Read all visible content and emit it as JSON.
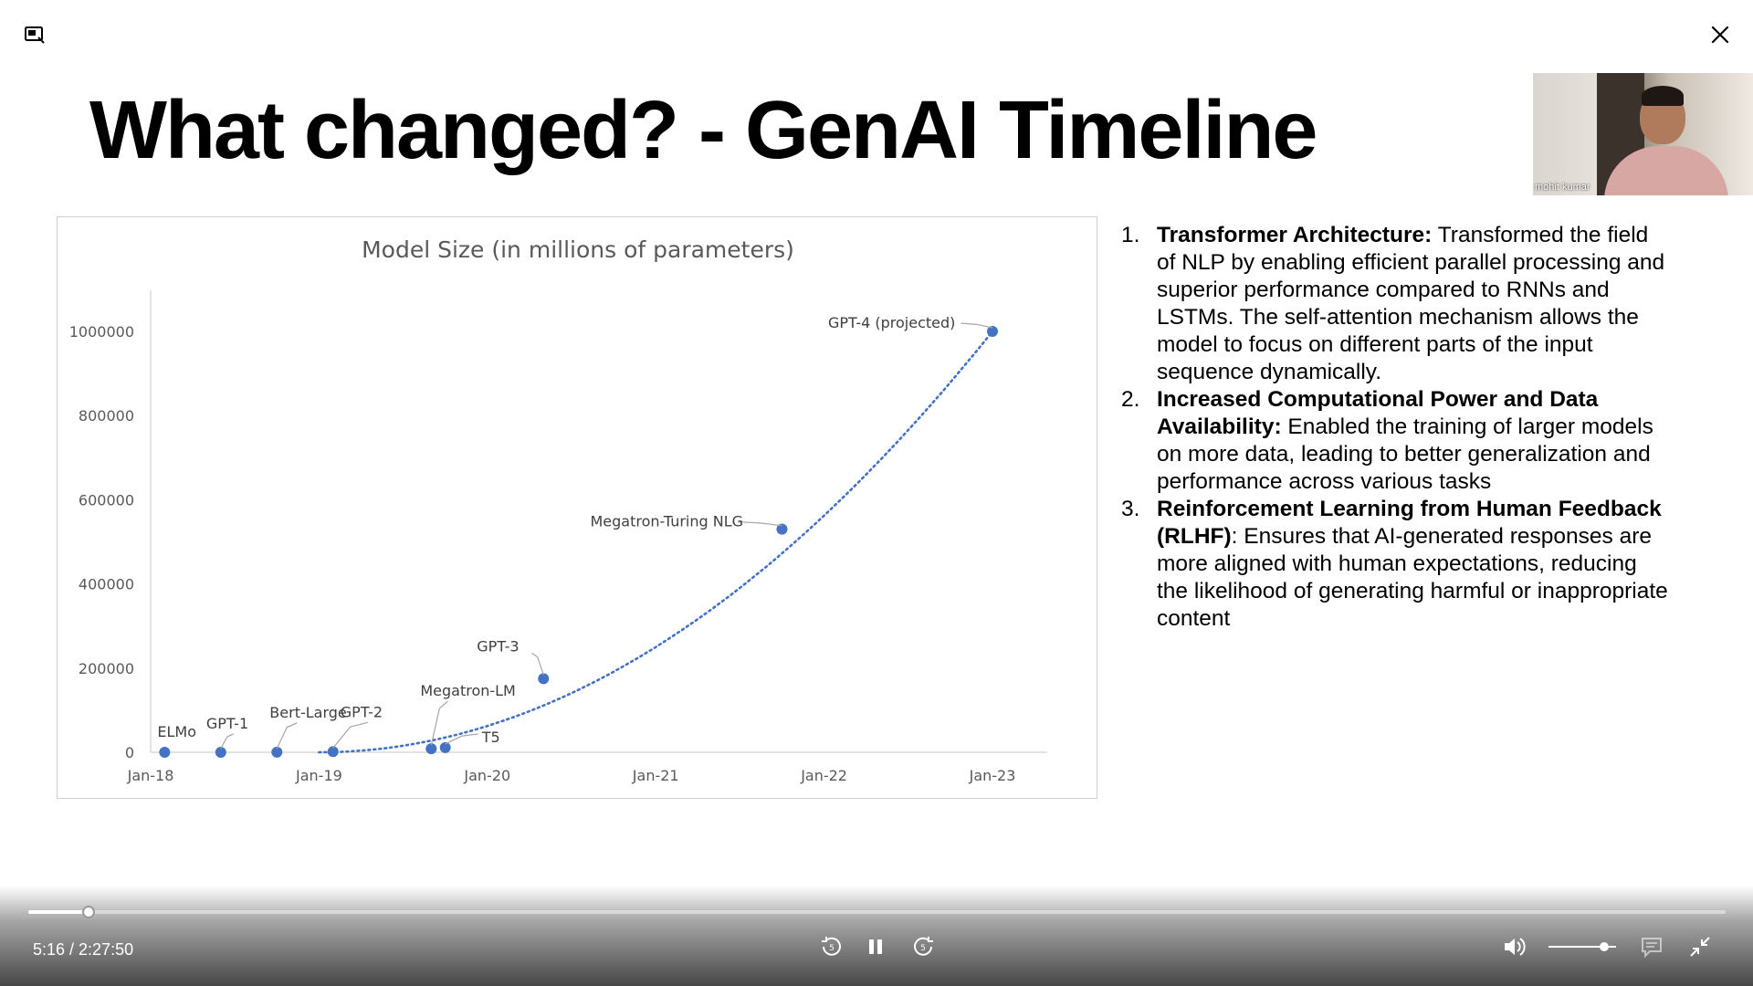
{
  "slide": {
    "title": "What changed? - GenAI Timeline"
  },
  "webcam": {
    "name": "mohit kumar"
  },
  "notes": [
    {
      "number": "1.",
      "bold": "Transformer Architecture:",
      "text": " Transformed the field of NLP by enabling efficient parallel processing and superior performance compared to RNNs and LSTMs. The self-attention mechanism allows the model to focus on different parts of the input sequence dynamically."
    },
    {
      "number": "2.",
      "bold": "Increased Computational Power and Data Availability:",
      "text": " Enabled the training of larger models on more data, leading to better generalization and performance across various tasks"
    },
    {
      "number": "3.",
      "bold": "Reinforcement Learning from Human Feedback (RLHF)",
      "text": ": Ensures that AI-generated responses are more aligned with human expectations, reducing the likelihood of generating harmful or inappropriate content"
    }
  ],
  "chart_data": {
    "type": "scatter",
    "title": "Model Size (in millions of parameters)",
    "xlabel": "",
    "ylabel": "",
    "x_ticks": [
      "Jan-18",
      "Jan-19",
      "Jan-20",
      "Jan-21",
      "Jan-22",
      "Jan-23"
    ],
    "y_ticks": [
      0,
      200000,
      400000,
      600000,
      800000,
      1000000
    ],
    "ylim": [
      0,
      1000000
    ],
    "xlim_years": [
      2018.0,
      2023.0
    ],
    "trendline": "dotted",
    "color": "#4472c4",
    "grid": false,
    "series": [
      {
        "points": [
          {
            "label": "ELMo",
            "date": "2018-02",
            "value": 94
          },
          {
            "label": "GPT-1",
            "date": "2018-06",
            "value": 117
          },
          {
            "label": "Bert-Large",
            "date": "2018-10",
            "value": 340
          },
          {
            "label": "GPT-2",
            "date": "2019-02",
            "value": 1500
          },
          {
            "label": "Megatron-LM",
            "date": "2019-09",
            "value": 8300
          },
          {
            "label": "T5",
            "date": "2019-10",
            "value": 11000
          },
          {
            "label": "GPT-3",
            "date": "2020-05",
            "value": 175000
          },
          {
            "label": "Megatron-Turing NLG",
            "date": "2021-10",
            "value": 530000
          },
          {
            "label": "GPT-4 (projected)",
            "date": "2023-01",
            "value": 1000000
          }
        ]
      }
    ]
  },
  "player": {
    "time_display": "5:16 / 2:27:50",
    "progress": 0.0356,
    "volume": 0.82
  },
  "icons": {
    "pip": "picture-in-picture-icon",
    "close": "close-icon",
    "rewind": "rewind-5-icon",
    "pause": "pause-icon",
    "forward": "forward-5-icon",
    "volume": "volume-icon",
    "captions": "captions-icon",
    "exit_fullscreen": "exit-fullscreen-icon"
  }
}
